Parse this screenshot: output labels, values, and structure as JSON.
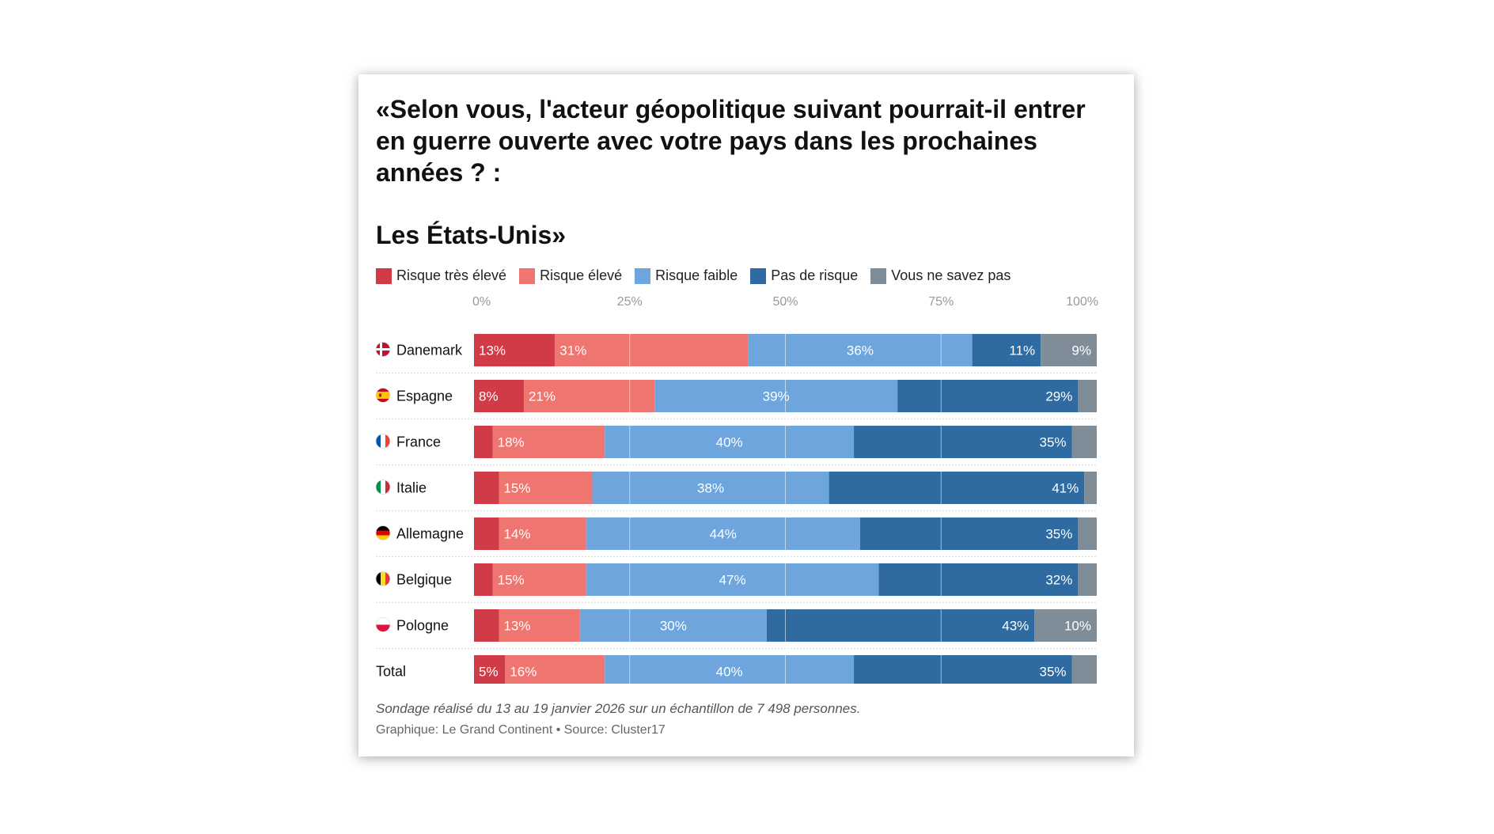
{
  "title": "«Selon vous, l'acteur géopolitique suivant pourrait-il entrer en guerre ouverte avec votre pays dans les prochaines années ? :",
  "subtitle": "Les États-Unis»",
  "footer": {
    "note": "Sondage réalisé du 13 au 19 janvier 2026 sur un échantillon de 7 498 personnes.",
    "credit": "Graphique: Le Grand Continent • Source: Cluster17"
  },
  "chart_data": {
    "type": "bar",
    "orientation": "horizontal",
    "stacked": true,
    "percent": true,
    "xlim": [
      0,
      100
    ],
    "ticks": [
      {
        "value": 0,
        "label": "0%"
      },
      {
        "value": 25,
        "label": "25%"
      },
      {
        "value": 50,
        "label": "50%"
      },
      {
        "value": 75,
        "label": "75%"
      },
      {
        "value": 100,
        "label": "100%"
      }
    ],
    "legend_position": "top",
    "categories": [
      "Danemark",
      "Espagne",
      "France",
      "Italie",
      "Allemagne",
      "Belgique",
      "Pologne",
      "Total"
    ],
    "flags": [
      "dk",
      "es",
      "fr",
      "it",
      "de",
      "be",
      "pl",
      ""
    ],
    "series": [
      {
        "name": "Risque très élevé",
        "color": "#d13b47",
        "values": [
          13,
          8,
          3,
          4,
          4,
          3,
          4,
          5
        ],
        "labels": [
          "13%",
          "8%",
          "",
          "",
          "",
          "",
          "",
          "5%"
        ]
      },
      {
        "name": "Risque élevé",
        "color": "#ee7570",
        "values": [
          31,
          21,
          18,
          15,
          14,
          15,
          13,
          16
        ],
        "labels": [
          "31%",
          "21%",
          "18%",
          "15%",
          "14%",
          "15%",
          "13%",
          "16%"
        ]
      },
      {
        "name": "Risque faible",
        "color": "#6fa5dd",
        "values": [
          36,
          39,
          40,
          38,
          44,
          47,
          30,
          40
        ],
        "labels": [
          "36%",
          "39%",
          "40%",
          "38%",
          "44%",
          "47%",
          "30%",
          "40%"
        ]
      },
      {
        "name": "Pas de risque",
        "color": "#2f6aa0",
        "values": [
          11,
          29,
          35,
          41,
          35,
          32,
          43,
          35
        ],
        "labels": [
          "11%",
          "29%",
          "35%",
          "41%",
          "35%",
          "32%",
          "43%",
          "35%"
        ]
      },
      {
        "name": "Vous ne savez pas",
        "color": "#7f8d99",
        "values": [
          9,
          3,
          4,
          2,
          3,
          3,
          10,
          4
        ],
        "labels": [
          "9%",
          "",
          "",
          "",
          "",
          "",
          "10%",
          ""
        ]
      }
    ]
  }
}
